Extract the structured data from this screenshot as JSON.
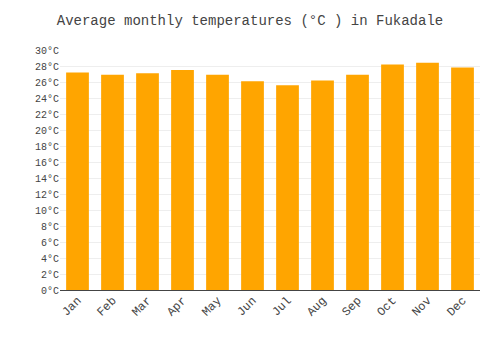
{
  "chart_data": {
    "type": "bar",
    "title": "Average monthly temperatures (°C ) in Fukadale",
    "categories": [
      "Jan",
      "Feb",
      "Mar",
      "Apr",
      "May",
      "Jun",
      "Jul",
      "Aug",
      "Sep",
      "Oct",
      "Nov",
      "Dec"
    ],
    "values": [
      27.2,
      26.9,
      27.1,
      27.5,
      26.9,
      26.1,
      25.6,
      26.2,
      26.9,
      28.2,
      28.4,
      27.8
    ],
    "color": "#FFA500",
    "ylim": [
      0,
      30
    ],
    "yticks": [
      {
        "value": 0,
        "label": "0°C"
      },
      {
        "value": 2,
        "label": "2°C"
      },
      {
        "value": 4,
        "label": "4°C"
      },
      {
        "value": 6,
        "label": "6°C"
      },
      {
        "value": 8,
        "label": "8°C"
      },
      {
        "value": 10,
        "label": "10°C"
      },
      {
        "value": 12,
        "label": "12°C"
      },
      {
        "value": 14,
        "label": "14°C"
      },
      {
        "value": 16,
        "label": "16°C"
      },
      {
        "value": 18,
        "label": "18°C"
      },
      {
        "value": 20,
        "label": "20°C"
      },
      {
        "value": 22,
        "label": "22°C"
      },
      {
        "value": 24,
        "label": "24°C"
      },
      {
        "value": 26,
        "label": "26°C"
      },
      {
        "value": 28,
        "label": "28°C"
      },
      {
        "value": 30,
        "label": "30°C"
      }
    ],
    "grid": true
  }
}
